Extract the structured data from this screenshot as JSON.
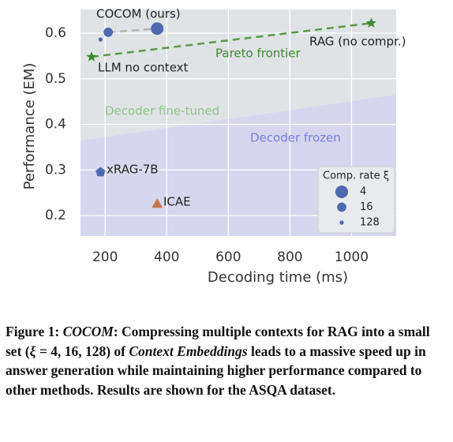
{
  "chart_data": {
    "type": "scatter",
    "xlabel": "Decoding time (ms)",
    "ylabel": "Performance (EM)",
    "xlim": [
      120,
      1145
    ],
    "ylim": [
      0.155,
      0.652
    ],
    "xticks": [
      200,
      400,
      600,
      800,
      1000
    ],
    "yticks": [
      0.2,
      0.3,
      0.4,
      0.5,
      0.6
    ],
    "grid": true,
    "series": [
      {
        "label": "COCOM (ours)",
        "marker": "circle",
        "color": "#4c6aad",
        "x": [
          185,
          210,
          369
        ],
        "values": [
          0.586,
          0.602,
          0.61
        ],
        "rates": [
          128,
          16,
          4
        ]
      },
      {
        "label": "LLM no context",
        "marker": "star",
        "color": "#3a8a2e",
        "x": [
          156
        ],
        "values": [
          0.548
        ]
      },
      {
        "label": "RAG (no compr.)",
        "marker": "star",
        "color": "#3a8a2e",
        "x": [
          1064
        ],
        "values": [
          0.622
        ]
      },
      {
        "label": "xRAG-7B",
        "marker": "pentagon",
        "color": "#4c6aad",
        "x": [
          185
        ],
        "values": [
          0.295
        ]
      },
      {
        "label": "ICAE",
        "marker": "triangle",
        "color": "#c8744f",
        "x": [
          369
        ],
        "values": [
          0.224
        ]
      }
    ],
    "pareto_label": "Pareto frontier",
    "boundary": {
      "x": [
        120,
        1145
      ],
      "y": [
        0.364,
        0.465
      ]
    },
    "region_labels": [
      "Decoder fine-tuned",
      "Decoder frozen"
    ],
    "legend": {
      "title": "Comp. rate ξ",
      "rates": [
        4,
        16,
        128
      ],
      "position": "lower right"
    }
  },
  "caption": [
    "Figure 1: ",
    "COCOM",
    ": Compressing multiple contexts for RAG into a small set (",
    "ξ",
    " = 4, 16, 128) of ",
    "Context Embeddings",
    " leads to a massive speed up in answer generation while maintaining higher performance compared to other methods. Results are shown for the ASQA dataset."
  ]
}
